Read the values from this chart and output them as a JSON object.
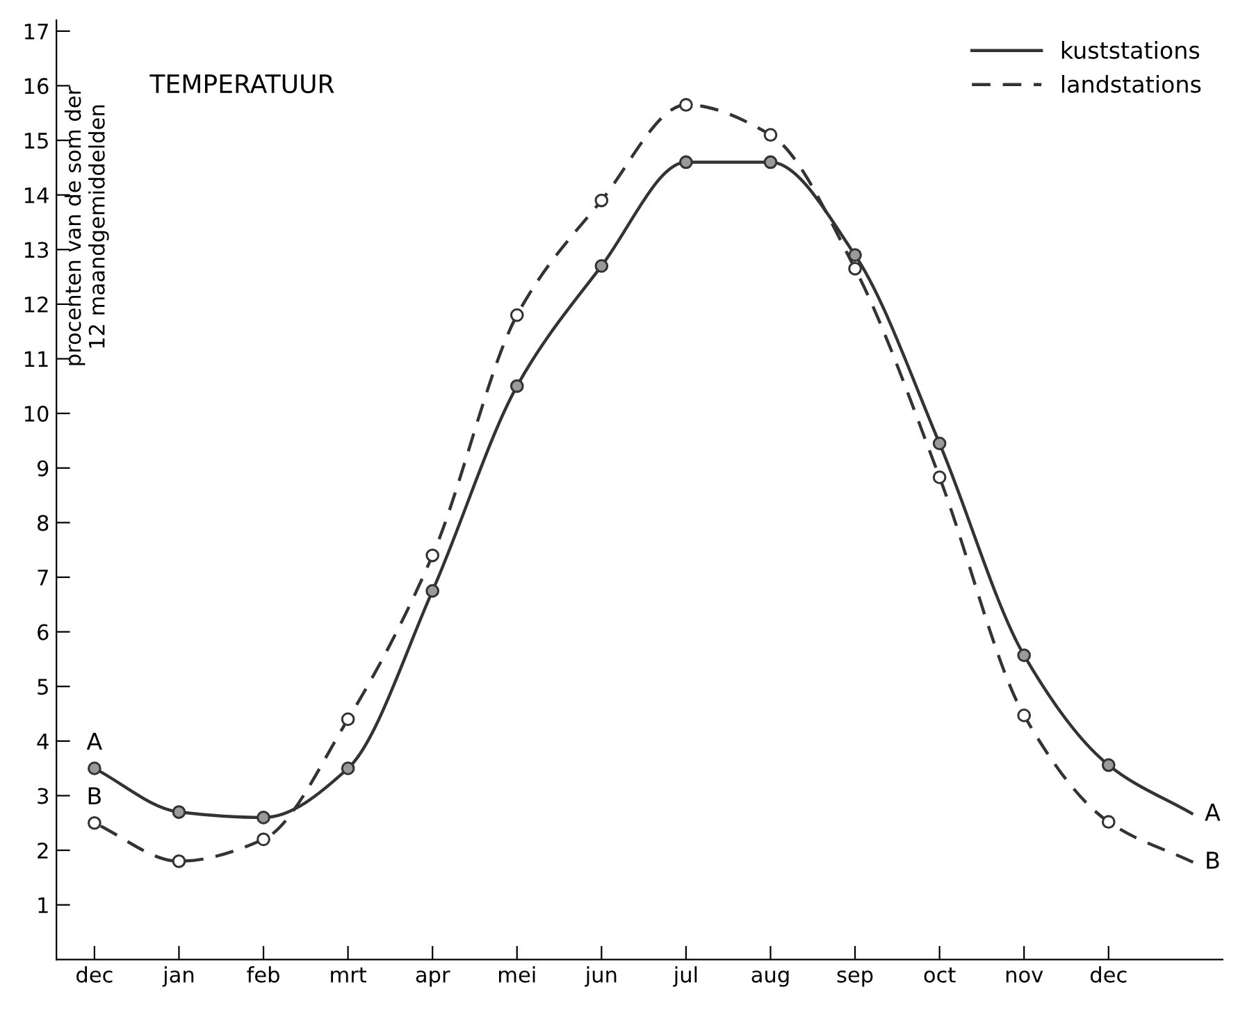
{
  "chart_data": {
    "type": "line",
    "title": "TEMPERATUUR",
    "ylabel": "procenten van de som der\n12 maandgemiddelden",
    "categories": [
      "dec",
      "jan",
      "feb",
      "mrt",
      "apr",
      "mei",
      "jun",
      "jul",
      "aug",
      "sep",
      "oct",
      "nov",
      "dec",
      null
    ],
    "ylim": [
      0,
      17.2
    ],
    "yticks": [
      1,
      2,
      3,
      4,
      5,
      6,
      7,
      8,
      9,
      10,
      11,
      12,
      13,
      14,
      15,
      16,
      17
    ],
    "legend": "top right",
    "grid": false,
    "series": [
      {
        "name": "kuststations",
        "color": "#333333",
        "line_style": "solid",
        "marker": "circle",
        "values": [
          3.5,
          2.7,
          2.6,
          3.5,
          6.75,
          10.5,
          12.7,
          14.6,
          14.6,
          12.9,
          9.45,
          5.57,
          3.56,
          2.66
        ]
      },
      {
        "name": "landstations",
        "color": "#333333",
        "line_style": "dashed",
        "marker": "circle",
        "values": [
          2.5,
          1.8,
          2.2,
          4.4,
          7.4,
          11.8,
          13.9,
          15.65,
          15.1,
          12.65,
          8.83,
          4.47,
          2.52,
          1.78
        ]
      }
    ],
    "annotations": [
      "A",
      "B",
      "A",
      "B"
    ]
  }
}
